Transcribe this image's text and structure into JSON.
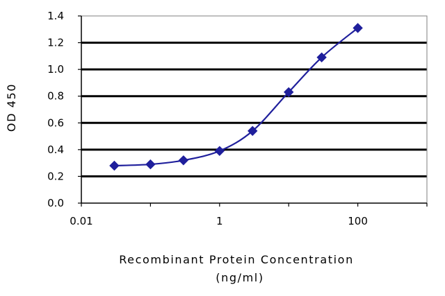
{
  "chart_data": {
    "type": "line",
    "xlabel": "Recombinant Protein Concentration",
    "xlabel_unit": "(ng/ml)",
    "ylabel": "OD 450",
    "x_scale": "log",
    "xlim": [
      0.01,
      1000
    ],
    "ylim": [
      0,
      1.4
    ],
    "x_ticks": [
      0.01,
      1,
      100
    ],
    "x_tick_labels": [
      "0.01",
      "1",
      "100"
    ],
    "y_ticks": [
      0,
      0.2,
      0.4,
      0.6,
      0.8,
      1.0,
      1.2,
      1.4
    ],
    "y_tick_labels": [
      "0.0",
      "0.2",
      "0.4",
      "0.6",
      "0.8",
      "1.0",
      "1.2",
      "1.4"
    ],
    "grid": "horizontal",
    "plot_background": "#ffffff",
    "gridline_color": "#000000",
    "series": [
      {
        "color": "#1f1f9c",
        "marker": "diamond",
        "x": [
          0.03,
          0.1,
          0.3,
          1,
          3,
          10,
          30,
          100
        ],
        "y": [
          0.28,
          0.29,
          0.32,
          0.39,
          0.54,
          0.83,
          1.09,
          1.31
        ]
      }
    ]
  }
}
